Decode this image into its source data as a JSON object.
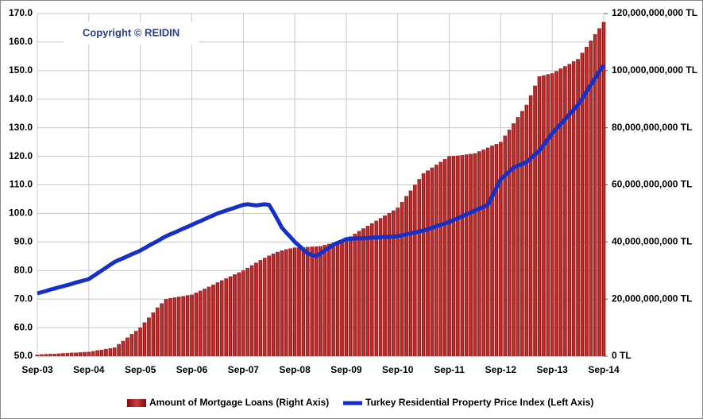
{
  "chart_data": {
    "type": "combo",
    "annotation": "Copyright © REIDIN",
    "categories": [
      "Sep-03",
      null,
      null,
      null,
      null,
      null,
      null,
      null,
      null,
      null,
      null,
      null,
      "Sep-04",
      null,
      null,
      null,
      null,
      null,
      null,
      null,
      null,
      null,
      null,
      null,
      "Sep-05",
      null,
      null,
      null,
      null,
      null,
      null,
      null,
      null,
      null,
      null,
      null,
      "Sep-06",
      null,
      null,
      null,
      null,
      null,
      null,
      null,
      null,
      null,
      null,
      null,
      "Sep-07",
      null,
      null,
      null,
      null,
      null,
      null,
      null,
      null,
      null,
      null,
      null,
      "Sep-08",
      null,
      null,
      null,
      null,
      null,
      null,
      null,
      null,
      null,
      null,
      null,
      "Sep-09",
      null,
      null,
      null,
      null,
      null,
      null,
      null,
      null,
      null,
      null,
      null,
      "Sep-10",
      null,
      null,
      null,
      null,
      null,
      null,
      null,
      null,
      null,
      null,
      null,
      "Sep-11",
      null,
      null,
      null,
      null,
      null,
      null,
      null,
      null,
      null,
      null,
      null,
      "Sep-12",
      null,
      null,
      null,
      null,
      null,
      null,
      null,
      null,
      null,
      null,
      null,
      "Sep-13",
      null,
      null,
      null,
      null,
      null,
      null,
      null,
      null,
      null,
      null,
      null,
      "Sep-14"
    ],
    "series": [
      {
        "name": "Amount of Mortgage Loans (Right Axis)",
        "type": "bar",
        "axis": "y2",
        "color": "#b51a1a",
        "values": [
          500000000.0,
          600000000.0,
          700000000.0,
          800000000.0,
          800000000.0,
          900000000.0,
          1000000000.0,
          1100000000.0,
          1200000000.0,
          1200000000.0,
          1300000000.0,
          1400000000.0,
          1500000000.0,
          1700000000.0,
          2000000000.0,
          2200000000.0,
          2500000000.0,
          2700000000.0,
          3000000000.0,
          4200000000.0,
          5300000000.0,
          6500000000.0,
          7700000000.0,
          8800000000.0,
          10000000000.0,
          11800000000.0,
          13500000000.0,
          15300000000.0,
          17000000000.0,
          18500000000.0,
          20000000000.0,
          20300000000.0,
          20500000000.0,
          20800000000.0,
          21000000000.0,
          21300000000.0,
          21500000000.0,
          22200000000.0,
          22900000000.0,
          23600000000.0,
          24300000000.0,
          25000000000.0,
          25800000000.0,
          26500000000.0,
          27200000000.0,
          27900000000.0,
          28600000000.0,
          29300000000.0,
          30000000000.0,
          30900000000.0,
          31800000000.0,
          32700000000.0,
          33600000000.0,
          34400000000.0,
          35200000000.0,
          35900000000.0,
          36500000000.0,
          37000000000.0,
          37400000000.0,
          37700000000.0,
          38000000000.0,
          38000000000.0,
          38100000000.0,
          38200000000.0,
          38300000000.0,
          38400000000.0,
          38500000000.0,
          38900000000.0,
          39300000000.0,
          39700000000.0,
          40100000000.0,
          40600000000.0,
          41000000000.0,
          41900000000.0,
          42800000000.0,
          43800000000.0,
          44700000000.0,
          45600000000.0,
          46500000000.0,
          47400000000.0,
          48300000000.0,
          49200000000.0,
          50100000000.0,
          51000000000.0,
          52000000000.0,
          54000000000.0,
          56000000000.0,
          58000000000.0,
          60000000000.0,
          62000000000.0,
          64000000000.0,
          65000000000.0,
          66000000000.0,
          67000000000.0,
          68000000000.0,
          69000000000.0,
          70000000000.0,
          70100000000.0,
          70200000000.0,
          70400000000.0,
          70600000000.0,
          70800000000.0,
          71000000000.0,
          71700000000.0,
          72300000000.0,
          73000000000.0,
          73700000000.0,
          74300000000.0,
          75000000000.0,
          77200000000.0,
          79300000000.0,
          81500000000.0,
          83700000000.0,
          85800000000.0,
          88000000000.0,
          91300000000.0,
          94700000000.0,
          98000000000.0,
          98300000000.0,
          98700000000.0,
          99000000000.0,
          99800000000.0,
          100700000000.0,
          101500000000.0,
          102300000000.0,
          103200000000.0,
          104000000000.0,
          106200000000.0,
          108300000000.0,
          110500000000.0,
          112700000000.0,
          114800000000.0,
          117000000000.0
        ]
      },
      {
        "name": "Turkey Residential Property Price Index (Left Axis)",
        "type": "line",
        "axis": "y",
        "color": "#1530c8",
        "values": [
          72,
          72.4,
          72.8,
          73.3,
          73.7,
          74.1,
          74.5,
          74.9,
          75.3,
          75.8,
          76.2,
          76.6,
          77,
          78,
          79,
          80,
          81,
          82,
          83,
          83.7,
          84.3,
          85,
          85.7,
          86.3,
          87,
          87.8,
          88.7,
          89.5,
          90.3,
          91.2,
          92,
          92.7,
          93.3,
          94,
          94.7,
          95.3,
          96,
          96.7,
          97.3,
          98,
          98.7,
          99.3,
          100,
          100.5,
          101,
          101.5,
          102,
          102.5,
          103,
          103.2,
          103,
          102.8,
          103,
          103.2,
          103,
          100.5,
          97.8,
          95,
          93.3,
          91.7,
          90,
          88.7,
          87.3,
          86,
          85.5,
          85,
          86,
          87,
          88,
          89,
          89.7,
          90.3,
          91,
          91.1,
          91.2,
          91.3,
          91.3,
          91.4,
          91.5,
          91.6,
          91.7,
          91.8,
          91.8,
          91.9,
          92,
          92.3,
          92.7,
          93,
          93.3,
          93.7,
          94,
          94.5,
          95,
          95.5,
          96,
          96.5,
          97,
          97.7,
          98.3,
          99,
          99.7,
          100.3,
          101,
          101.7,
          102.3,
          103,
          106,
          109,
          112,
          113.3,
          114.7,
          116,
          116.7,
          117.3,
          118,
          119.3,
          120.7,
          122,
          124,
          126,
          128,
          129.7,
          131.3,
          133,
          134.7,
          136.3,
          138,
          140.3,
          142.7,
          145,
          147.3,
          149.7,
          152
        ]
      }
    ],
    "ylim": [
      50,
      170
    ],
    "yticks": [
      {
        "value": 50,
        "label": "50.0"
      },
      {
        "value": 60,
        "label": "60.0"
      },
      {
        "value": 70,
        "label": "70.0"
      },
      {
        "value": 80,
        "label": "80.0"
      },
      {
        "value": 90,
        "label": "90.0"
      },
      {
        "value": 100,
        "label": "100.0"
      },
      {
        "value": 110,
        "label": "110.0"
      },
      {
        "value": 120,
        "label": "120.0"
      },
      {
        "value": 130,
        "label": "130.0"
      },
      {
        "value": 140,
        "label": "140.0"
      },
      {
        "value": 150,
        "label": "150.0"
      },
      {
        "value": 160,
        "label": "160.0"
      },
      {
        "value": 170,
        "label": "170.0"
      }
    ],
    "y2lim": [
      0,
      120000000000
    ],
    "y2ticks": [
      {
        "value": 0,
        "label": "0 TL"
      },
      {
        "value": 20000000000,
        "label": "20,000,000,000 TL"
      },
      {
        "value": 40000000000,
        "label": "40,000,000,000 TL"
      },
      {
        "value": 60000000000,
        "label": "60,000,000,000 TL"
      },
      {
        "value": 80000000000,
        "label": "80,000,000,000 TL"
      },
      {
        "value": 100000000000,
        "label": "100,000,000,000 TL"
      },
      {
        "value": 120000000000,
        "label": "120,000,000,000 TL"
      }
    ],
    "grid": true,
    "legend": "bottom"
  }
}
